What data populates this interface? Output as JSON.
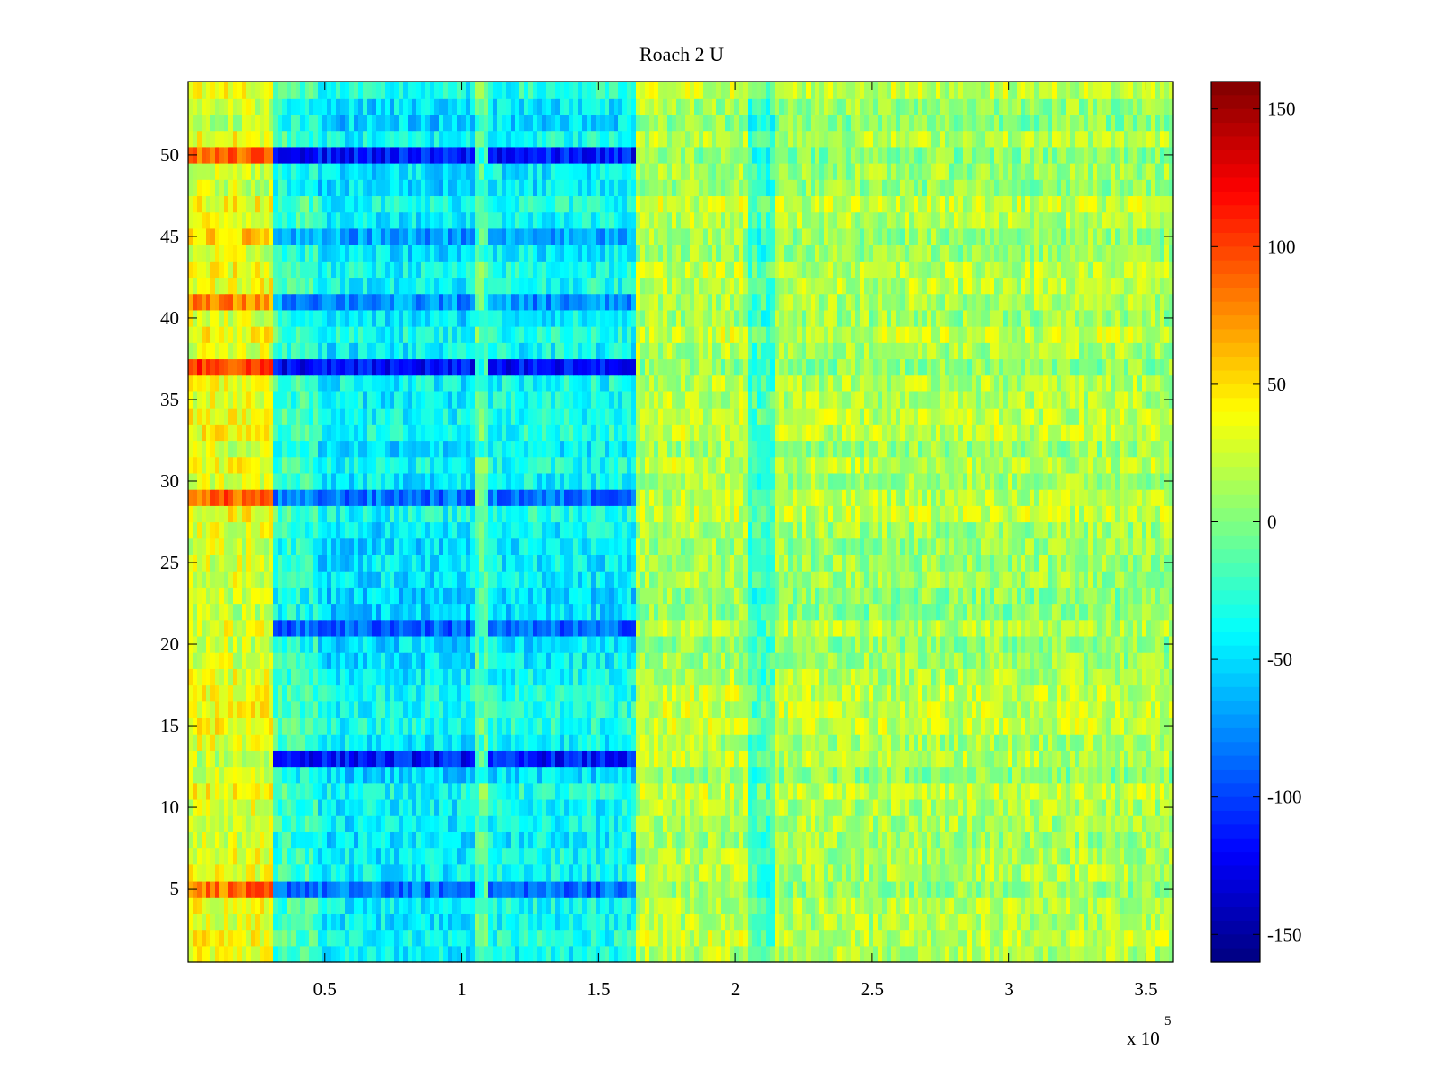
{
  "chart_data": {
    "type": "heatmap",
    "title": "Roach 2 U",
    "xlabel": "",
    "ylabel": "",
    "x_range": [
      0,
      360000
    ],
    "y_range": [
      0.5,
      54.5
    ],
    "rows": 54,
    "x_scale_note": {
      "prefix": "x 10",
      "exponent": "5"
    },
    "x_ticks": [
      {
        "value": 50000,
        "label": "0.5"
      },
      {
        "value": 100000,
        "label": "1"
      },
      {
        "value": 150000,
        "label": "1.5"
      },
      {
        "value": 200000,
        "label": "2"
      },
      {
        "value": 250000,
        "label": "2.5"
      },
      {
        "value": 300000,
        "label": "3"
      },
      {
        "value": 350000,
        "label": "3.5"
      }
    ],
    "y_ticks": [
      {
        "value": 5,
        "label": "5"
      },
      {
        "value": 10,
        "label": "10"
      },
      {
        "value": 15,
        "label": "15"
      },
      {
        "value": 20,
        "label": "20"
      },
      {
        "value": 25,
        "label": "25"
      },
      {
        "value": 30,
        "label": "30"
      },
      {
        "value": 35,
        "label": "35"
      },
      {
        "value": 40,
        "label": "40"
      },
      {
        "value": 45,
        "label": "45"
      },
      {
        "value": 50,
        "label": "50"
      }
    ],
    "colorbar": {
      "colormap": "jet",
      "range": [
        -160,
        160
      ],
      "ticks": [
        {
          "value": 150,
          "label": "150"
        },
        {
          "value": 100,
          "label": "100"
        },
        {
          "value": 50,
          "label": "50"
        },
        {
          "value": 0,
          "label": "0"
        },
        {
          "value": -50,
          "label": "-50"
        },
        {
          "value": -100,
          "label": "-100"
        },
        {
          "value": -150,
          "label": "-150"
        }
      ]
    },
    "segments": [
      {
        "x_range": [
          0,
          31000
        ],
        "mean": 30
      },
      {
        "x_range": [
          31000,
          47000
        ],
        "mean": -25
      },
      {
        "x_range": [
          47000,
          105000
        ],
        "mean": -45
      },
      {
        "x_range": [
          105000,
          109000
        ],
        "mean": -15
      },
      {
        "x_range": [
          109000,
          163000
        ],
        "mean": -40
      },
      {
        "x_range": [
          163000,
          205000
        ],
        "mean": 15
      },
      {
        "x_range": [
          205000,
          215000
        ],
        "mean": -20
      },
      {
        "x_range": [
          215000,
          360000
        ],
        "mean": 12
      }
    ],
    "strong_rows": [
      {
        "row": 50,
        "hot_value": 85,
        "cold_value": -115
      },
      {
        "row": 37,
        "hot_value": 100,
        "cold_value": -120
      },
      {
        "row": 13,
        "hot_value": 20,
        "cold_value": -115
      },
      {
        "row": 21,
        "hot_value": 30,
        "cold_value": -90
      },
      {
        "row": 29,
        "hot_value": 90,
        "cold_value": -85
      },
      {
        "row": 5,
        "hot_value": 85,
        "cold_value": -85
      },
      {
        "row": 41,
        "hot_value": 75,
        "cold_value": -75
      },
      {
        "row": 45,
        "hot_value": 55,
        "cold_value": -70
      }
    ]
  }
}
